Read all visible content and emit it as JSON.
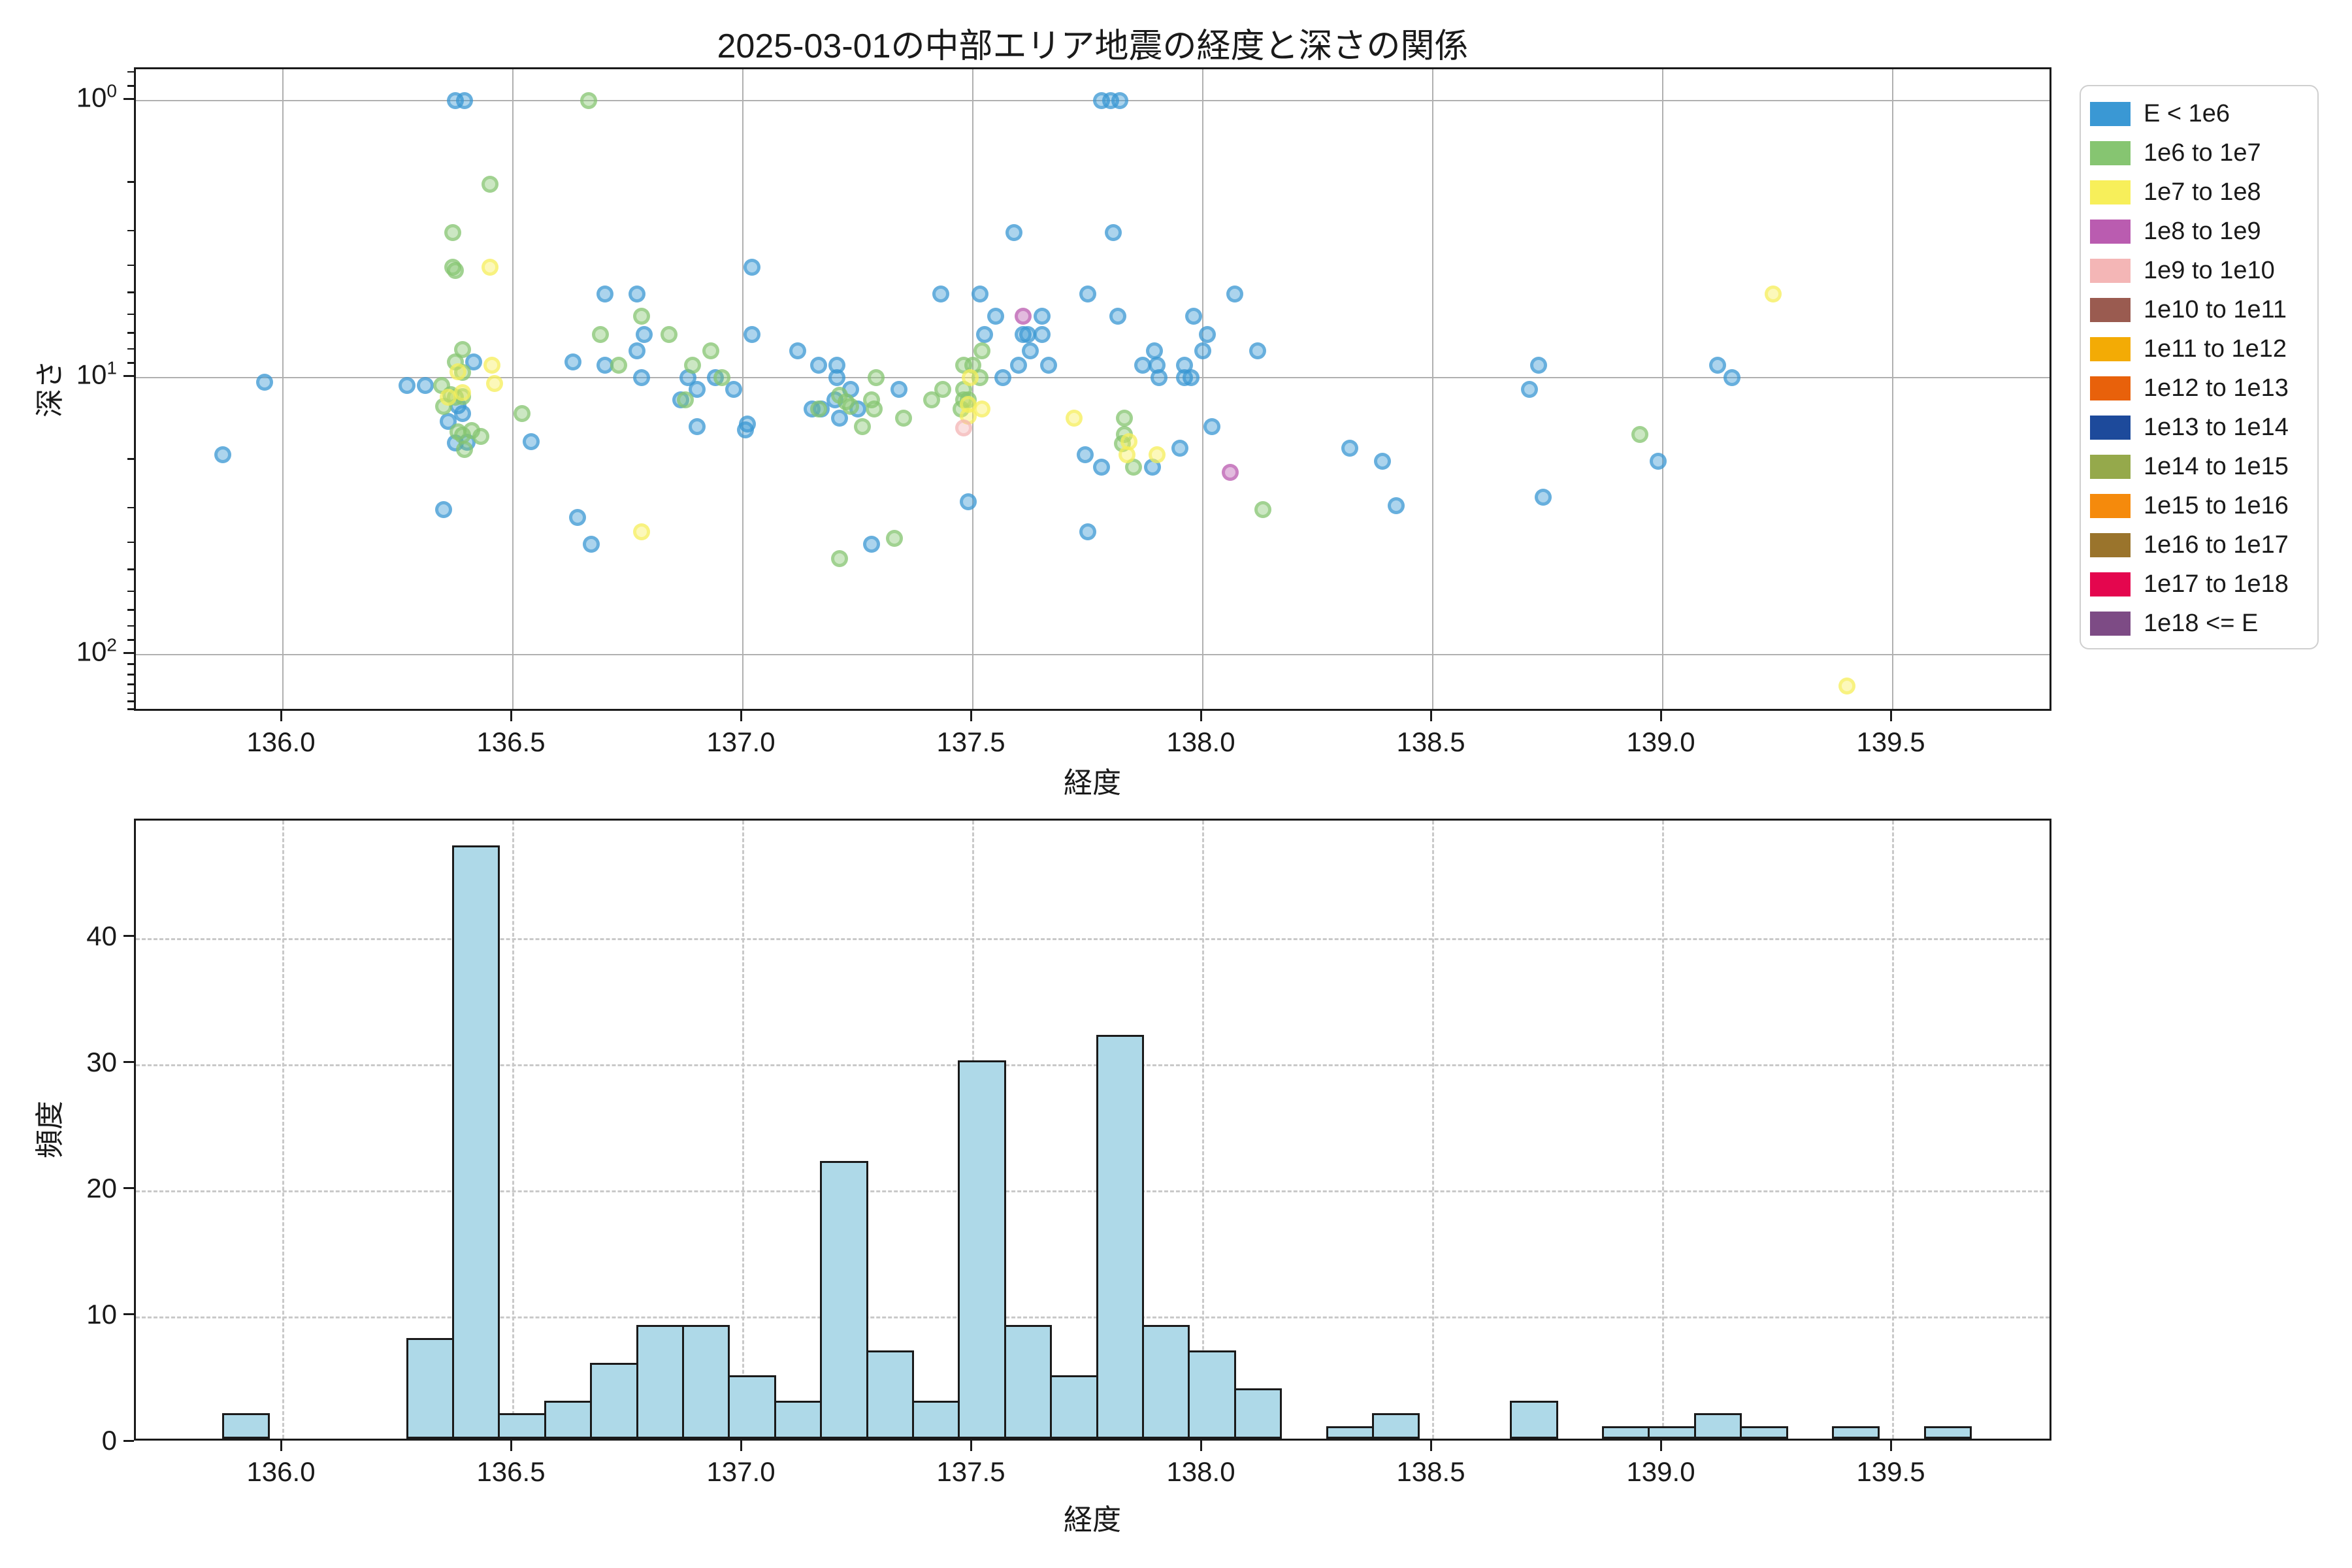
{
  "title": "2025-03-01の中部エリア地震の経度と深さの関係",
  "scatter": {
    "xlabel": "経度",
    "ylabel": "深さ",
    "x_tick_labels": [
      "136.0",
      "136.5",
      "137.0",
      "137.5",
      "138.0",
      "138.5",
      "139.0",
      "139.5"
    ],
    "y_tick_labels": [
      "10^0",
      "10^1",
      "10^2"
    ]
  },
  "histogram": {
    "xlabel": "経度",
    "ylabel": "頻度",
    "x_tick_labels": [
      "136.0",
      "136.5",
      "137.0",
      "137.5",
      "138.0",
      "138.5",
      "139.0",
      "139.5"
    ],
    "y_tick_labels": [
      "0",
      "10",
      "20",
      "30",
      "40"
    ]
  },
  "legend": {
    "entries": [
      {
        "label": "E < 1e6",
        "color": "#3a98d4"
      },
      {
        "label": "1e6 to 1e7",
        "color": "#86c571"
      },
      {
        "label": "1e7 to 1e8",
        "color": "#f7ef5a"
      },
      {
        "label": "1e8 to 1e9",
        "color": "#ba5cb0"
      },
      {
        "label": "1e9 to 1e10",
        "color": "#f4b6b6"
      },
      {
        "label": "1e10 to 1e11",
        "color": "#9a5b50"
      },
      {
        "label": "1e11 to 1e12",
        "color": "#f3ab05"
      },
      {
        "label": "1e12 to 1e13",
        "color": "#e8610b"
      },
      {
        "label": "1e13 to 1e14",
        "color": "#1d4a9b"
      },
      {
        "label": "1e14 to 1e15",
        "color": "#95a94b"
      },
      {
        "label": "1e15 to 1e16",
        "color": "#f58a0c"
      },
      {
        "label": "1e16 to 1e17",
        "color": "#9a742c"
      },
      {
        "label": "1e17 to 1e18",
        "color": "#e4064e"
      },
      {
        "label": "1e18 <= E",
        "color": "#7d4b85"
      }
    ]
  },
  "chart_data": [
    {
      "type": "scatter",
      "title": "2025-03-01の中部エリア地震の経度と深さの関係",
      "xlabel": "経度",
      "ylabel": "深さ",
      "x_range": [
        135.68,
        139.85
      ],
      "x_ticks": [
        136.0,
        136.5,
        137.0,
        137.5,
        138.0,
        138.5,
        139.0,
        139.5
      ],
      "y_axis": {
        "scale": "log",
        "inverted": true,
        "range": [
          0.77,
          162
        ],
        "major_ticks": [
          1,
          10,
          100
        ]
      },
      "legend_position": "outside-upper-right",
      "series": [
        {
          "name": "E < 1e6",
          "color": "#3a98d4",
          "points": [
            [
              135.87,
              19
            ],
            [
              135.96,
              10.4
            ],
            [
              136.375,
              1
            ],
            [
              136.395,
              1
            ],
            [
              136.27,
              10.7
            ],
            [
              136.31,
              10.7
            ],
            [
              136.415,
              8.8
            ],
            [
              136.38,
              12.6
            ],
            [
              136.39,
              13.5
            ],
            [
              136.36,
              14.4
            ],
            [
              136.375,
              17.2
            ],
            [
              136.4,
              17.1
            ],
            [
              136.35,
              30
            ],
            [
              136.54,
              17
            ],
            [
              136.63,
              8.8
            ],
            [
              136.64,
              32
            ],
            [
              136.67,
              40
            ],
            [
              136.7,
              5
            ],
            [
              136.77,
              5
            ],
            [
              136.785,
              7
            ],
            [
              136.77,
              8
            ],
            [
              136.7,
              9
            ],
            [
              136.78,
              10
            ],
            [
              136.88,
              10
            ],
            [
              136.9,
              11
            ],
            [
              136.865,
              12
            ],
            [
              136.94,
              10
            ],
            [
              136.98,
              11
            ],
            [
              136.9,
              15
            ],
            [
              137.02,
              4
            ],
            [
              137.02,
              7
            ],
            [
              137.005,
              15.4
            ],
            [
              137.01,
              14.7
            ],
            [
              137.12,
              8
            ],
            [
              137.165,
              9
            ],
            [
              137.205,
              9
            ],
            [
              137.205,
              10
            ],
            [
              137.2,
              12
            ],
            [
              137.15,
              13
            ],
            [
              137.17,
              13
            ],
            [
              137.21,
              14
            ],
            [
              137.235,
              11
            ],
            [
              137.25,
              13
            ],
            [
              137.34,
              11
            ],
            [
              137.28,
              40
            ],
            [
              137.78,
              1
            ],
            [
              137.8,
              1
            ],
            [
              137.82,
              1
            ],
            [
              137.59,
              3
            ],
            [
              137.805,
              3
            ],
            [
              137.43,
              5
            ],
            [
              137.515,
              5
            ],
            [
              137.75,
              5
            ],
            [
              137.55,
              6
            ],
            [
              137.65,
              6
            ],
            [
              137.815,
              6
            ],
            [
              137.525,
              7
            ],
            [
              137.61,
              7
            ],
            [
              137.62,
              7
            ],
            [
              137.65,
              7
            ],
            [
              137.625,
              8
            ],
            [
              137.6,
              9
            ],
            [
              137.665,
              9
            ],
            [
              137.565,
              10
            ],
            [
              137.745,
              19
            ],
            [
              137.78,
              21
            ],
            [
              137.89,
              21
            ],
            [
              137.95,
              18
            ],
            [
              138.02,
              15
            ],
            [
              137.75,
              36
            ],
            [
              137.49,
              28
            ],
            [
              138.07,
              5
            ],
            [
              137.98,
              6
            ],
            [
              138.01,
              7
            ],
            [
              138.0,
              8
            ],
            [
              137.96,
              9
            ],
            [
              137.96,
              10
            ],
            [
              137.975,
              10
            ],
            [
              137.9,
              9
            ],
            [
              137.87,
              9
            ],
            [
              137.895,
              8
            ],
            [
              137.905,
              10
            ],
            [
              138.12,
              8
            ],
            [
              138.32,
              18
            ],
            [
              138.39,
              20
            ],
            [
              138.42,
              29
            ],
            [
              138.73,
              9
            ],
            [
              138.71,
              11
            ],
            [
              138.74,
              27
            ],
            [
              138.99,
              20
            ],
            [
              139.12,
              9
            ],
            [
              139.15,
              10
            ]
          ]
        },
        {
          "name": "1e6 to 1e7",
          "color": "#86c571",
          "points": [
            [
              136.665,
              1
            ],
            [
              136.45,
              2
            ],
            [
              136.37,
              3
            ],
            [
              136.37,
              4
            ],
            [
              136.375,
              4.1
            ],
            [
              136.39,
              7.9
            ],
            [
              136.375,
              8.8
            ],
            [
              136.39,
              9.6
            ],
            [
              136.345,
              10.7
            ],
            [
              136.365,
              11.5
            ],
            [
              136.375,
              11.8
            ],
            [
              136.39,
              11.7
            ],
            [
              136.35,
              12.7
            ],
            [
              136.41,
              15.5
            ],
            [
              136.38,
              15.7
            ],
            [
              136.39,
              16.1
            ],
            [
              136.43,
              16.3
            ],
            [
              136.395,
              18.2
            ],
            [
              136.52,
              13.5
            ],
            [
              136.78,
              6
            ],
            [
              136.69,
              7
            ],
            [
              136.84,
              7
            ],
            [
              136.73,
              9
            ],
            [
              136.93,
              8
            ],
            [
              136.89,
              9
            ],
            [
              136.955,
              10
            ],
            [
              136.875,
              12
            ],
            [
              137.165,
              13
            ],
            [
              137.225,
              12.2
            ],
            [
              137.235,
              12.7
            ],
            [
              137.21,
              11.6
            ],
            [
              137.26,
              15
            ],
            [
              137.28,
              12
            ],
            [
              137.285,
              13
            ],
            [
              137.29,
              10
            ],
            [
              137.35,
              14
            ],
            [
              137.21,
              45
            ],
            [
              137.33,
              38
            ],
            [
              137.52,
              8
            ],
            [
              137.48,
              9
            ],
            [
              137.5,
              9
            ],
            [
              137.515,
              10
            ],
            [
              137.435,
              11
            ],
            [
              137.41,
              12
            ],
            [
              137.48,
              11
            ],
            [
              137.48,
              12
            ],
            [
              137.49,
              12
            ],
            [
              137.475,
              13
            ],
            [
              137.83,
              14
            ],
            [
              137.83,
              16
            ],
            [
              137.825,
              17.3
            ],
            [
              137.85,
              21
            ],
            [
              138.13,
              30
            ],
            [
              138.95,
              16
            ]
          ]
        },
        {
          "name": "1e7 to 1e8",
          "color": "#f7ef5a",
          "points": [
            [
              136.45,
              4
            ],
            [
              136.455,
              9
            ],
            [
              136.46,
              10.5
            ],
            [
              136.38,
              9.5
            ],
            [
              136.36,
              11.8
            ],
            [
              136.39,
              11.3
            ],
            [
              136.78,
              36
            ],
            [
              137.495,
              10
            ],
            [
              137.49,
              12.5
            ],
            [
              137.49,
              13.8
            ],
            [
              137.52,
              13
            ],
            [
              137.72,
              14
            ],
            [
              137.84,
              17
            ],
            [
              137.835,
              19
            ],
            [
              137.9,
              19
            ],
            [
              139.24,
              5
            ],
            [
              139.4,
              130
            ]
          ]
        },
        {
          "name": "1e8 to 1e9",
          "color": "#ba5cb0",
          "points": [
            [
              137.61,
              6
            ],
            [
              138.06,
              22
            ]
          ]
        },
        {
          "name": "1e9 to 1e10",
          "color": "#f4b6b6",
          "points": [
            [
              137.48,
              15.2
            ]
          ]
        }
      ]
    },
    {
      "type": "bar",
      "subtype": "histogram",
      "xlabel": "経度",
      "ylabel": "頻度",
      "x_range": [
        135.68,
        139.85
      ],
      "x_ticks": [
        136.0,
        136.5,
        137.0,
        137.5,
        138.0,
        138.5,
        139.0,
        139.5
      ],
      "y_ticks": [
        0,
        10,
        20,
        30,
        40
      ],
      "y_range": [
        0,
        49.3
      ],
      "grid": "dashed",
      "bar_color": "#aed9e8",
      "bar_edge_color": "#1a1a1a",
      "bin_start": 135.87,
      "bin_width": 0.1,
      "counts": [
        2,
        0,
        0,
        0,
        8,
        47,
        2,
        3,
        6,
        9,
        9,
        5,
        3,
        22,
        7,
        3,
        30,
        9,
        5,
        32,
        9,
        7,
        4,
        0,
        1,
        2,
        0,
        0,
        3,
        0,
        1,
        1,
        2,
        1,
        0,
        1,
        0,
        1
      ]
    }
  ]
}
